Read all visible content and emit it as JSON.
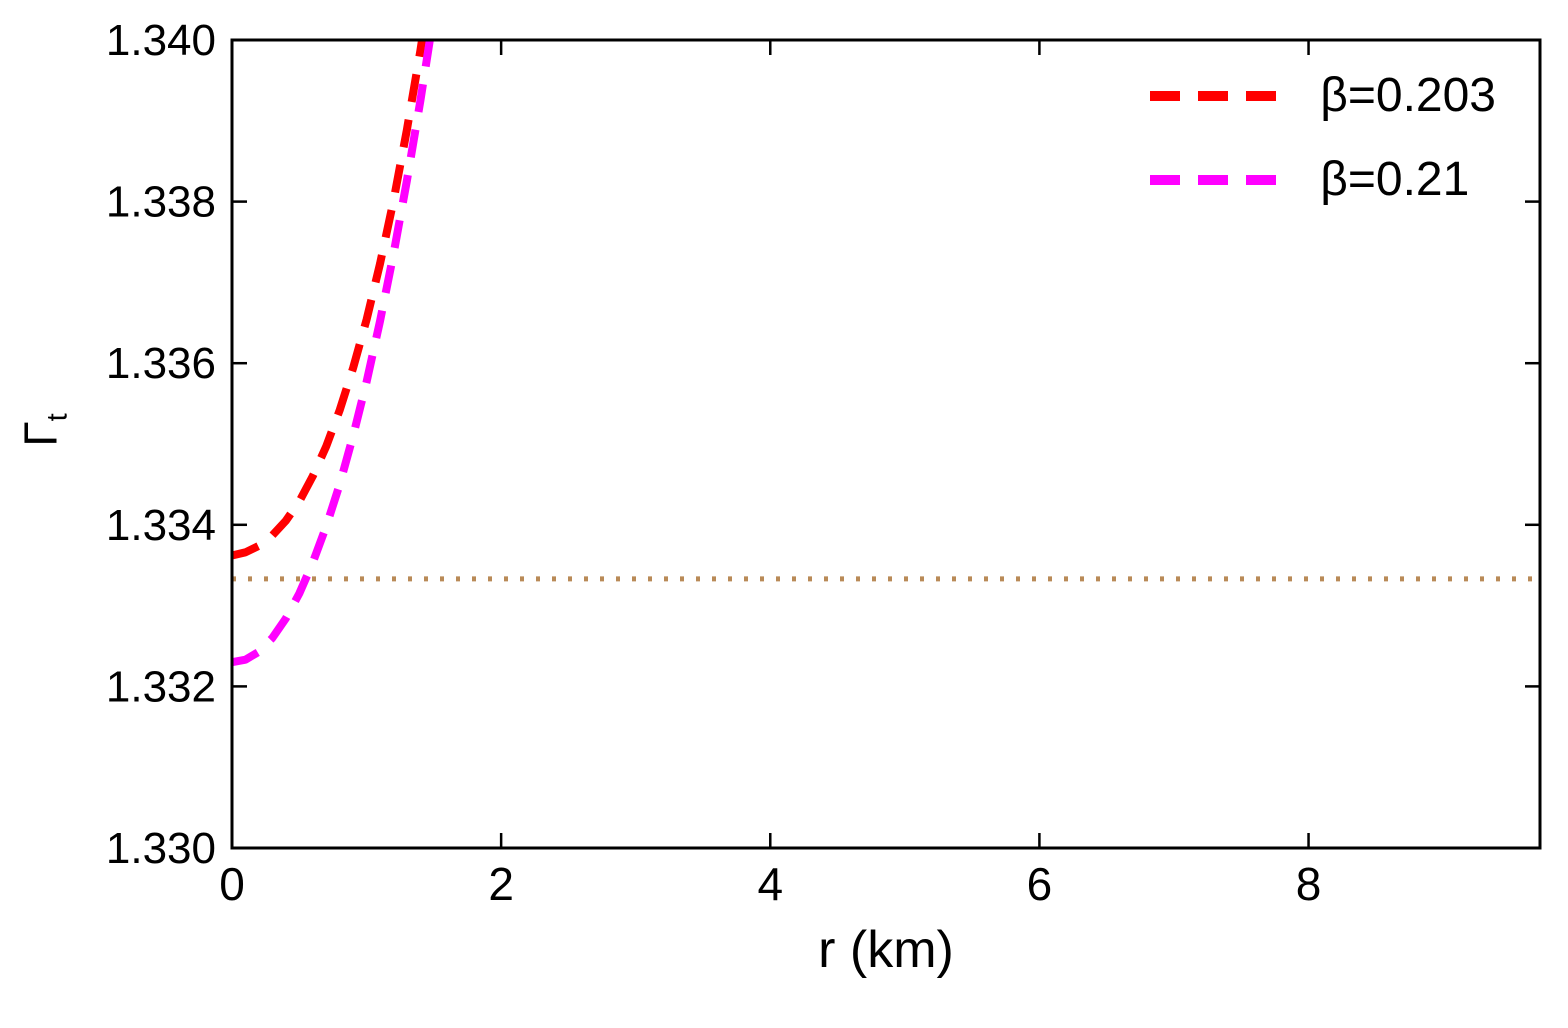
{
  "figure": {
    "background": "#ffffff",
    "frame_color": "#000000"
  },
  "chart_data": {
    "type": "line",
    "title": "",
    "xlabel": "r (km)",
    "ylabel_base": "Γ",
    "ylabel_sub": "t",
    "xlim": [
      0,
      9.72
    ],
    "ylim": [
      1.33,
      1.34
    ],
    "x_ticks": [
      0,
      2,
      4,
      6,
      8
    ],
    "x_tick_labels": [
      "0",
      "2",
      "4",
      "6",
      "8"
    ],
    "y_ticks": [
      1.33,
      1.332,
      1.334,
      1.336,
      1.338,
      1.34
    ],
    "y_tick_labels": [
      "1.330",
      "1.332",
      "1.334",
      "1.336",
      "1.338",
      "1.340"
    ],
    "grid": false,
    "frame": true,
    "legend_position": "top-right",
    "series": [
      {
        "name": "β=0.203",
        "color": "#ff0000",
        "style": "dashed",
        "x": [
          0,
          0.1,
          0.2,
          0.3,
          0.4,
          0.5,
          0.6,
          0.7,
          0.8,
          0.9,
          1.0,
          1.1,
          1.2,
          1.3,
          1.4,
          1.5
        ],
        "y": [
          1.33362,
          1.33366,
          1.33374,
          1.33387,
          1.33405,
          1.33429,
          1.3346,
          1.33497,
          1.33542,
          1.33594,
          1.33654,
          1.33723,
          1.33801,
          1.33889,
          1.33987,
          1.34096
        ]
      },
      {
        "name": "β=0.21",
        "color": "#ff00ff",
        "style": "dashed",
        "x": [
          0,
          0.1,
          0.2,
          0.3,
          0.4,
          0.5,
          0.6,
          0.7,
          0.8,
          0.9,
          1.0,
          1.1,
          1.2,
          1.3,
          1.4,
          1.5,
          1.6
        ],
        "y": [
          1.3323,
          1.33233,
          1.33243,
          1.3326,
          1.33284,
          1.33315,
          1.33353,
          1.33398,
          1.3345,
          1.3351,
          1.33577,
          1.33652,
          1.33735,
          1.33826,
          1.33925,
          1.34032,
          1.34147
        ]
      },
      {
        "name": "reference-line",
        "color": "#b98a57",
        "style": "dotted",
        "x": [
          0,
          9.72
        ],
        "y": [
          1.33333,
          1.33333
        ]
      }
    ],
    "legend": [
      {
        "label": "β=0.203",
        "color": "#ff0000"
      },
      {
        "label": "β=0.21",
        "color": "#ff00ff"
      }
    ]
  }
}
